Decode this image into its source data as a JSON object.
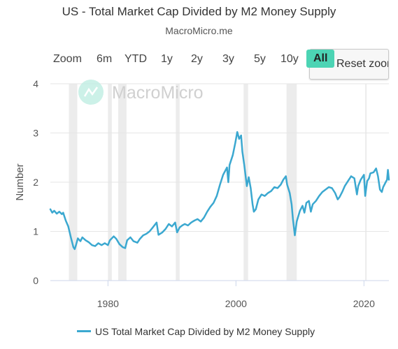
{
  "header": {
    "title": "US - Total Market Cap Divided by M2 Money Supply",
    "subtitle": "MacroMicro.me"
  },
  "zoom": {
    "label": "Zoom",
    "buttons": [
      "6m",
      "YTD",
      "1y",
      "2y",
      "3y",
      "5y",
      "10y",
      "All"
    ],
    "selected": "All",
    "reset_label": "Reset zoom"
  },
  "watermark": "MacroMicro",
  "colors": {
    "series": "#3ba8d0",
    "accent": "#4cd4b4",
    "recession_band": "#ececec",
    "gridline": "#e6e6e6"
  },
  "chart_data": {
    "type": "line",
    "title": "US - Total Market Cap Divided by M2 Money Supply",
    "subtitle": "MacroMicro.me",
    "xlabel": "",
    "ylabel": "Number",
    "xlim": [
      1971,
      2023.9
    ],
    "ylim": [
      0,
      4
    ],
    "x_ticks": [
      1980,
      2000,
      2020
    ],
    "y_ticks": [
      0,
      1,
      2,
      3,
      4
    ],
    "grid": "horizontal",
    "legend_position": "bottom-center",
    "recession_bands": [
      [
        1973.9,
        1975.2
      ],
      [
        1980.0,
        1980.6
      ],
      [
        1981.6,
        1982.9
      ],
      [
        1990.6,
        1991.2
      ],
      [
        2001.2,
        2001.9
      ],
      [
        2007.9,
        2009.5
      ],
      [
        2020.2,
        2020.4
      ]
    ],
    "series": [
      {
        "name": "US Total Market Cap Divided by M2 Money Supply",
        "x": [
          1971.0,
          1971.3,
          1971.6,
          1972.0,
          1972.4,
          1972.8,
          1973.0,
          1973.4,
          1973.8,
          1974.2,
          1974.6,
          1974.8,
          1975.0,
          1975.3,
          1975.7,
          1976.0,
          1976.5,
          1977.0,
          1977.5,
          1978.0,
          1978.5,
          1979.0,
          1979.5,
          1980.0,
          1980.3,
          1980.9,
          1981.3,
          1981.8,
          1982.3,
          1982.7,
          1983.0,
          1983.5,
          1984.0,
          1984.6,
          1985.0,
          1985.5,
          1986.0,
          1986.5,
          1987.0,
          1987.6,
          1987.9,
          1988.5,
          1989.0,
          1989.5,
          1990.0,
          1990.5,
          1990.8,
          1991.2,
          1991.6,
          1992.0,
          1992.5,
          1993.0,
          1993.5,
          1994.0,
          1994.5,
          1995.0,
          1995.5,
          1996.0,
          1996.5,
          1997.0,
          1997.5,
          1998.0,
          1998.6,
          1998.8,
          1999.0,
          1999.5,
          1999.9,
          2000.2,
          2000.5,
          2000.8,
          2001.0,
          2001.3,
          2001.7,
          2002.0,
          2002.3,
          2002.6,
          2002.8,
          2003.1,
          2003.5,
          2004.0,
          2004.5,
          2005.0,
          2005.5,
          2006.0,
          2006.5,
          2007.0,
          2007.4,
          2007.8,
          2008.0,
          2008.4,
          2008.7,
          2008.9,
          2009.2,
          2009.5,
          2010.0,
          2010.4,
          2010.7,
          2011.0,
          2011.4,
          2011.7,
          2012.0,
          2012.5,
          2013.0,
          2013.5,
          2014.0,
          2014.5,
          2015.0,
          2015.5,
          2015.9,
          2016.2,
          2016.6,
          2017.0,
          2017.5,
          2018.0,
          2018.5,
          2018.9,
          2019.1,
          2019.5,
          2020.0,
          2020.2,
          2020.5,
          2020.8,
          2021.0,
          2021.5,
          2021.9,
          2022.2,
          2022.5,
          2022.8,
          2023.0,
          2023.4,
          2023.6,
          2023.75,
          2023.9
        ],
        "y": [
          1.45,
          1.38,
          1.42,
          1.36,
          1.4,
          1.35,
          1.38,
          1.22,
          1.1,
          0.88,
          0.68,
          0.64,
          0.72,
          0.86,
          0.8,
          0.88,
          0.82,
          0.78,
          0.72,
          0.7,
          0.76,
          0.72,
          0.76,
          0.72,
          0.82,
          0.9,
          0.85,
          0.74,
          0.68,
          0.66,
          0.82,
          0.88,
          0.8,
          0.77,
          0.85,
          0.92,
          0.95,
          1.0,
          1.08,
          1.18,
          0.93,
          0.98,
          1.05,
          1.15,
          1.1,
          1.18,
          0.98,
          1.08,
          1.12,
          1.15,
          1.12,
          1.18,
          1.22,
          1.25,
          1.2,
          1.28,
          1.4,
          1.5,
          1.58,
          1.72,
          1.95,
          2.15,
          2.3,
          2.0,
          2.35,
          2.55,
          2.8,
          3.02,
          2.88,
          2.95,
          2.62,
          2.35,
          1.92,
          2.1,
          1.88,
          1.55,
          1.4,
          1.45,
          1.65,
          1.75,
          1.72,
          1.78,
          1.82,
          1.9,
          1.88,
          1.95,
          2.05,
          2.12,
          1.95,
          1.78,
          1.55,
          1.25,
          0.92,
          1.2,
          1.42,
          1.52,
          1.38,
          1.58,
          1.62,
          1.4,
          1.55,
          1.62,
          1.72,
          1.8,
          1.85,
          1.9,
          1.88,
          1.78,
          1.65,
          1.7,
          1.8,
          1.92,
          2.02,
          2.12,
          2.08,
          1.75,
          1.92,
          2.05,
          2.15,
          1.72,
          2.02,
          2.08,
          2.18,
          2.2,
          2.28,
          2.12,
          1.85,
          1.8,
          1.9,
          2.0,
          2.05,
          2.25,
          2.05
        ]
      }
    ]
  }
}
